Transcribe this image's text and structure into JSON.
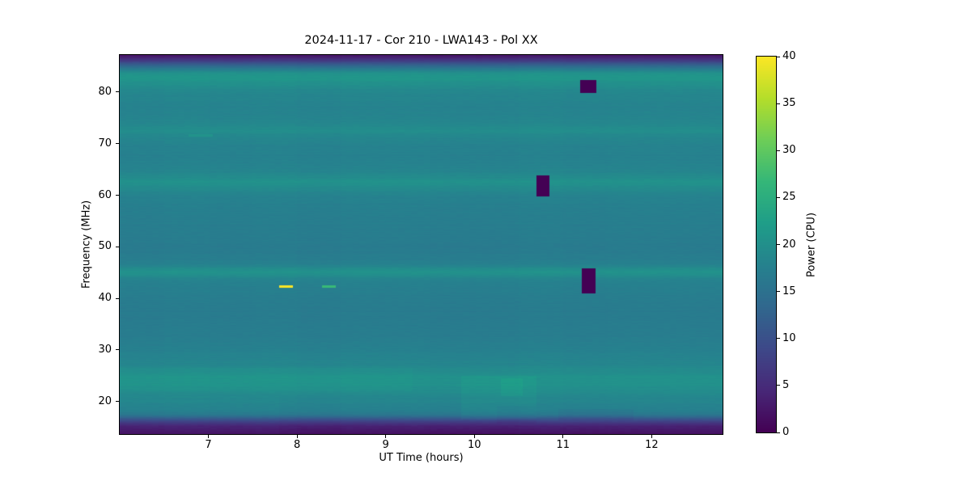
{
  "chart_data": {
    "type": "heatmap",
    "title": "2024-11-17 - Cor 210 - LWA143 - Pol XX",
    "xlabel": "UT Time (hours)",
    "ylabel": "Frequency (MHz)",
    "x_range": [
      6.0,
      12.8
    ],
    "y_range": [
      13.7,
      87.2
    ],
    "x_ticks": [
      7,
      8,
      9,
      10,
      11,
      12
    ],
    "y_ticks": [
      20,
      30,
      40,
      50,
      60,
      70,
      80
    ],
    "grid": false,
    "colorbar": {
      "label": "Power (CPU)",
      "range": [
        0,
        40
      ],
      "ticks": [
        0,
        5,
        10,
        15,
        20,
        25,
        30,
        35,
        40
      ],
      "colormap": "viridis",
      "stops": [
        "#440154",
        "#482878",
        "#3e4989",
        "#31688e",
        "#26828e",
        "#1f9e89",
        "#35b779",
        "#6ece58",
        "#b5de2b",
        "#fde725"
      ]
    },
    "frequency_profile_mhz_power": [
      [
        13.7,
        2.0
      ],
      [
        14.5,
        2.6
      ],
      [
        15.3,
        4.0
      ],
      [
        16.2,
        8.0
      ],
      [
        16.9,
        12.5
      ],
      [
        17.5,
        15.8
      ],
      [
        18.2,
        17.2
      ],
      [
        19.2,
        17.9
      ],
      [
        20.5,
        18.3
      ],
      [
        22.0,
        19.3
      ],
      [
        23.4,
        20.2
      ],
      [
        24.8,
        20.2
      ],
      [
        26.0,
        19.2
      ],
      [
        27.5,
        18.3
      ],
      [
        29.0,
        17.8
      ],
      [
        31.0,
        17.3
      ],
      [
        33.0,
        16.9
      ],
      [
        35.0,
        16.7
      ],
      [
        37.0,
        16.6
      ],
      [
        39.0,
        16.8
      ],
      [
        41.0,
        17.1
      ],
      [
        42.5,
        17.4
      ],
      [
        43.8,
        18.1
      ],
      [
        44.6,
        19.9
      ],
      [
        45.3,
        20.4
      ],
      [
        46.1,
        18.5
      ],
      [
        47.0,
        17.2
      ],
      [
        48.5,
        16.8
      ],
      [
        50.0,
        16.6
      ],
      [
        52.0,
        16.9
      ],
      [
        54.0,
        17.0
      ],
      [
        56.0,
        17.2
      ],
      [
        58.0,
        17.4
      ],
      [
        60.0,
        17.8
      ],
      [
        61.5,
        19.3
      ],
      [
        62.5,
        20.3
      ],
      [
        63.5,
        19.3
      ],
      [
        64.5,
        18.2
      ],
      [
        66.0,
        17.8
      ],
      [
        68.0,
        17.6
      ],
      [
        70.0,
        17.9
      ],
      [
        71.5,
        18.7
      ],
      [
        72.5,
        19.6
      ],
      [
        73.6,
        18.8
      ],
      [
        75.0,
        18.2
      ],
      [
        77.0,
        18.0
      ],
      [
        79.0,
        18.3
      ],
      [
        80.5,
        18.8
      ],
      [
        81.8,
        20.1
      ],
      [
        82.8,
        21.2
      ],
      [
        83.6,
        20.4
      ],
      [
        84.5,
        16.5
      ],
      [
        85.3,
        12.0
      ],
      [
        86.1,
        7.0
      ],
      [
        86.8,
        3.5
      ],
      [
        87.2,
        2.2
      ]
    ],
    "patches": [
      {
        "x": [
          6.0,
          9.3
        ],
        "y": [
          22.0,
          26.5
        ],
        "dpower": 0.5
      },
      {
        "x": [
          6.0,
          7.8
        ],
        "y": [
          13.7,
          21.0
        ],
        "dpower": 0.3
      },
      {
        "x": [
          9.85,
          10.7
        ],
        "y": [
          16.5,
          25.0
        ],
        "dpower": 0.9
      },
      {
        "x": [
          10.3,
          10.55
        ],
        "y": [
          21.0,
          24.5
        ],
        "dpower": 1.1
      },
      {
        "x": [
          10.95,
          11.8
        ],
        "y": [
          16.3,
          18.6
        ],
        "dpower": -0.8
      },
      {
        "x": [
          10.25,
          10.7
        ],
        "y": [
          15.8,
          19.2
        ],
        "dpower": -0.6
      }
    ],
    "features": [
      {
        "kind": "rfi-streak",
        "x": [
          7.8,
          7.95
        ],
        "y": [
          42.0,
          42.6
        ],
        "power": 40
      },
      {
        "kind": "rfi-streak",
        "x": [
          8.28,
          8.44
        ],
        "y": [
          42.0,
          42.5
        ],
        "power": 27
      },
      {
        "kind": "rfi-streak",
        "x": [
          6.78,
          7.05
        ],
        "y": [
          71.3,
          71.8
        ],
        "power": 20.5
      },
      {
        "kind": "dropout",
        "x": [
          10.7,
          10.85
        ],
        "y": [
          59.8,
          63.8
        ],
        "power": 0
      },
      {
        "kind": "dropout",
        "x": [
          11.19,
          11.38
        ],
        "y": [
          79.9,
          82.4
        ],
        "power": 0
      },
      {
        "kind": "dropout",
        "x": [
          11.21,
          11.37
        ],
        "y": [
          40.9,
          45.8
        ],
        "power": 0
      }
    ]
  }
}
